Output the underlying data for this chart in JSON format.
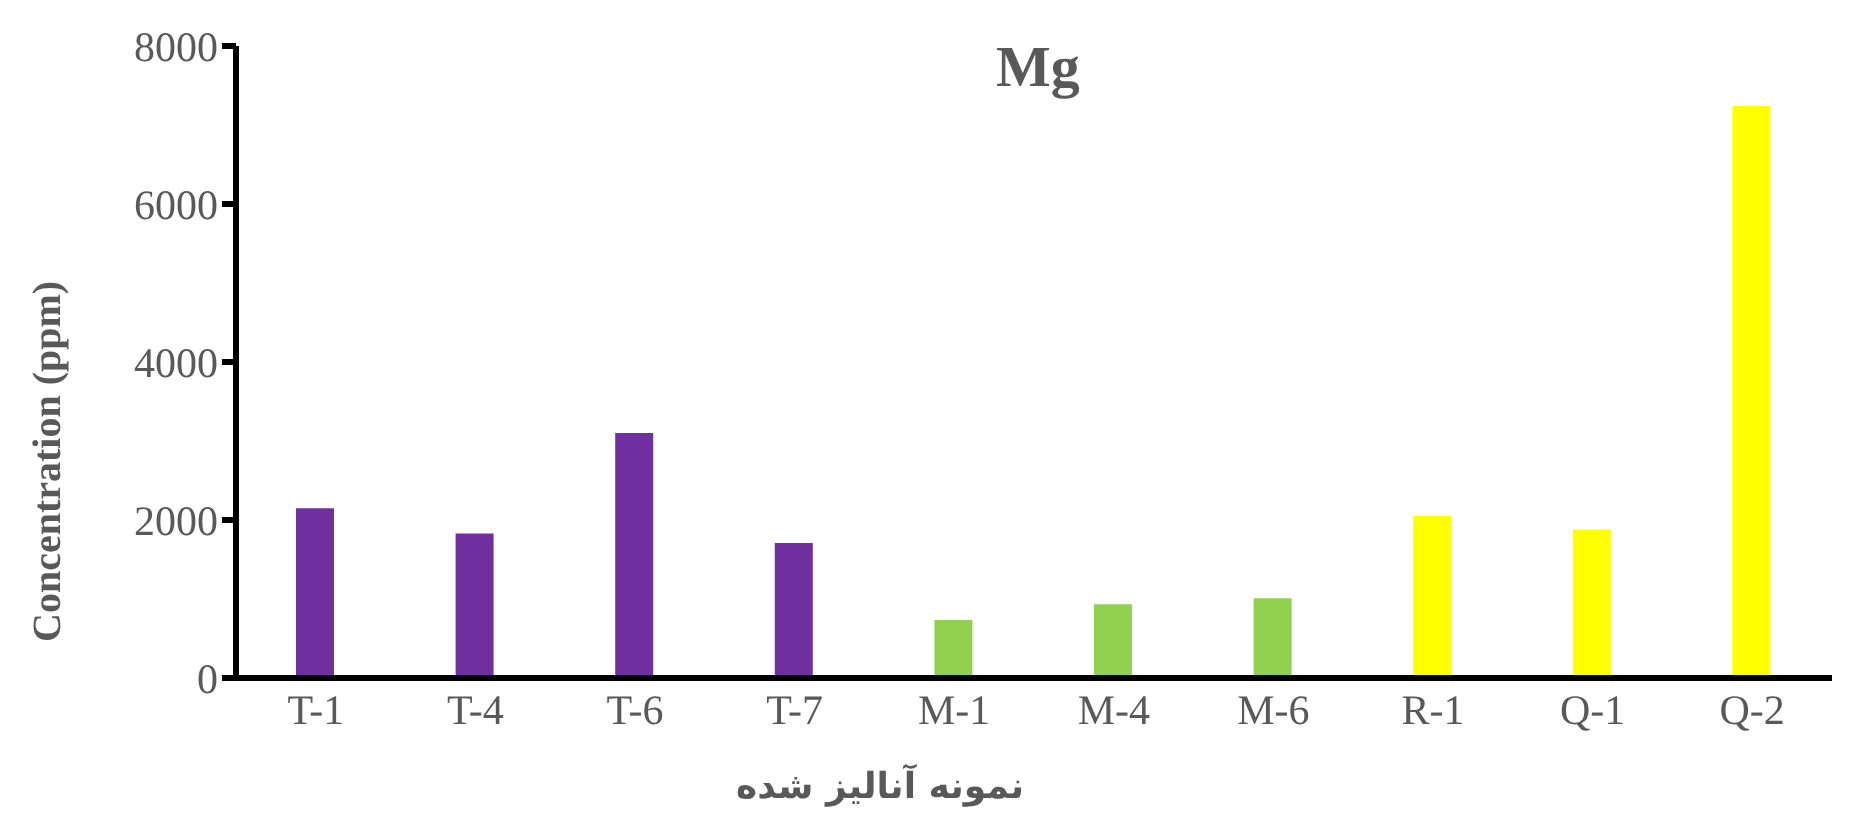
{
  "chart_data": {
    "type": "bar",
    "title": "Mg",
    "xlabel": "نمونه آنالیز شده",
    "ylabel": "Concentration (ppm)",
    "categories": [
      "T-1",
      "T-4",
      "T-6",
      "T-7",
      "M-1",
      "M-4",
      "M-6",
      "R-1",
      "Q-1",
      "Q-2"
    ],
    "values": [
      2150,
      1830,
      3100,
      1710,
      735,
      935,
      1010,
      2055,
      1880,
      7240
    ],
    "colors": [
      "#7030a0",
      "#7030a0",
      "#7030a0",
      "#7030a0",
      "#92d050",
      "#92d050",
      "#92d050",
      "#ffff00",
      "#ffff00",
      "#ffff00"
    ],
    "ylim": [
      0,
      8000
    ],
    "yticks": [
      0,
      2000,
      4000,
      6000,
      8000
    ],
    "grid": false,
    "legend": false
  }
}
